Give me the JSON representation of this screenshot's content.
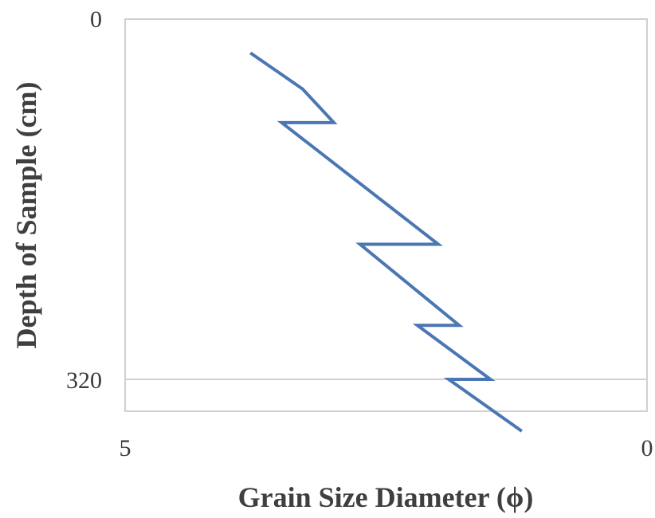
{
  "chart_data": {
    "type": "line",
    "title": "",
    "xlabel": "Grain Size Diameter (ϕ)",
    "ylabel": "Depth of Sample (cm)",
    "xlim": [
      5,
      0
    ],
    "ylim": [
      0,
      320
    ],
    "x_ticks": [
      "5",
      "0"
    ],
    "y_ticks": [
      "0",
      "320"
    ],
    "x_reversed": true,
    "y_reversed": true,
    "grid": false,
    "line_color": "#4a77b4",
    "series": [
      {
        "name": "",
        "points": [
          {
            "x": 3.8,
            "y": 30
          },
          {
            "x": 3.3,
            "y": 62
          },
          {
            "x": 3.0,
            "y": 92
          },
          {
            "x": 3.5,
            "y": 92
          },
          {
            "x": 2.0,
            "y": 200
          },
          {
            "x": 2.75,
            "y": 200
          },
          {
            "x": 1.8,
            "y": 272
          },
          {
            "x": 2.2,
            "y": 272
          },
          {
            "x": 1.5,
            "y": 320
          },
          {
            "x": 1.9,
            "y": 320
          },
          {
            "x": 1.2,
            "y": 366
          }
        ]
      }
    ]
  }
}
